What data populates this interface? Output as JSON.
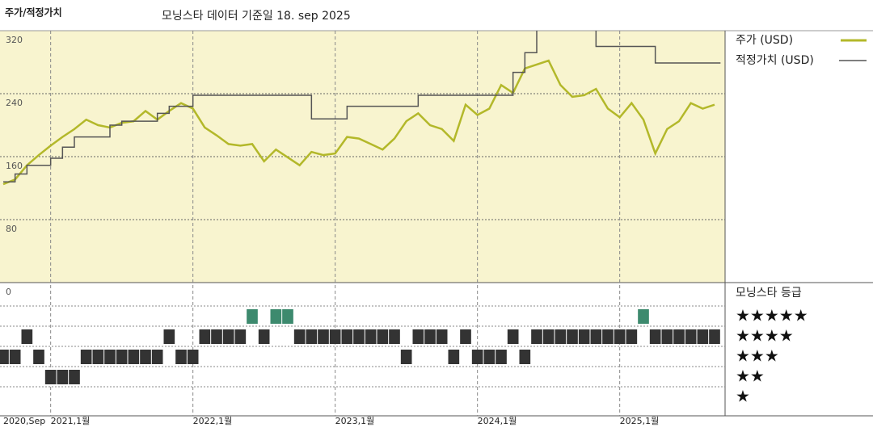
{
  "header": {
    "title": "주가/적정가치",
    "subtitle": "모닝스타 데이터 기준일 18. sep 2025"
  },
  "chart_data": [
    {
      "type": "line",
      "x": [
        "2020-09",
        "2020-10",
        "2020-11",
        "2020-12",
        "2021-01",
        "2021-02",
        "2021-03",
        "2021-04",
        "2021-05",
        "2021-06",
        "2021-07",
        "2021-08",
        "2021-09",
        "2021-10",
        "2021-11",
        "2021-12",
        "2022-01",
        "2022-02",
        "2022-03",
        "2022-04",
        "2022-05",
        "2022-06",
        "2022-07",
        "2022-08",
        "2022-09",
        "2022-10",
        "2022-11",
        "2022-12",
        "2023-01",
        "2023-02",
        "2023-03",
        "2023-04",
        "2023-05",
        "2023-06",
        "2023-07",
        "2023-08",
        "2023-09",
        "2023-10",
        "2023-11",
        "2023-12",
        "2024-01",
        "2024-02",
        "2024-03",
        "2024-04",
        "2024-05",
        "2024-06",
        "2024-07",
        "2024-08",
        "2024-09",
        "2024-10",
        "2024-11",
        "2024-12",
        "2025-01",
        "2025-02",
        "2025-03",
        "2025-04",
        "2025-05",
        "2025-06",
        "2025-07",
        "2025-08",
        "2025-09"
      ],
      "series": [
        {
          "name": "주가 (USD)",
          "color": "#b3b82a",
          "values": [
            125,
            131,
            149,
            162,
            174,
            185,
            195,
            207,
            200,
            197,
            203,
            205,
            218,
            207,
            218,
            228,
            221,
            197,
            187,
            176,
            174,
            176,
            154,
            169,
            159,
            149,
            166,
            162,
            164,
            185,
            183,
            176,
            169,
            183,
            205,
            215,
            200,
            195,
            180,
            226,
            213,
            221,
            251,
            241,
            272,
            277,
            282,
            251,
            236,
            238,
            246,
            221,
            210,
            228,
            207,
            164,
            195,
            205,
            228,
            221,
            226
          ]
        },
        {
          "name": "적정가치 (USD)",
          "color": "#555555",
          "step": true,
          "values": [
            128,
            138,
            149,
            149,
            158,
            172,
            185,
            185,
            185,
            200,
            205,
            205,
            205,
            215,
            224,
            224,
            238,
            238,
            238,
            238,
            238,
            238,
            238,
            238,
            238,
            238,
            208,
            208,
            208,
            224,
            224,
            224,
            224,
            224,
            224,
            238,
            238,
            238,
            238,
            238,
            238,
            238,
            238,
            267,
            292,
            330,
            330,
            330,
            330,
            330,
            300,
            300,
            300,
            300,
            300,
            279,
            279,
            279,
            279,
            279,
            279
          ]
        }
      ],
      "ylim": [
        0,
        320
      ],
      "yticks": [
        0,
        80,
        160,
        240,
        320
      ],
      "xticks": [
        {
          "value": "2020-09",
          "label": "2020,Sep"
        },
        {
          "value": "2021-01",
          "label": "2021,1월"
        },
        {
          "value": "2022-01",
          "label": "2022,1월"
        },
        {
          "value": "2023-01",
          "label": "2023,1월"
        },
        {
          "value": "2024-01",
          "label": "2024,1월"
        },
        {
          "value": "2025-01",
          "label": "2025,1월"
        }
      ],
      "background": "#f8f4cf",
      "grid": true
    },
    {
      "type": "rating",
      "title": "모닝스타 등급",
      "levels": [
        {
          "value": 5,
          "label": "★★★★★"
        },
        {
          "value": 4,
          "label": "★★★★"
        },
        {
          "value": 3,
          "label": "★★★"
        },
        {
          "value": 2,
          "label": "★★"
        },
        {
          "value": 1,
          "label": "★"
        }
      ],
      "values": [
        3,
        3,
        4,
        3,
        2,
        2,
        2,
        3,
        3,
        3,
        3,
        3,
        3,
        3,
        4,
        3,
        3,
        4,
        4,
        4,
        4,
        5,
        4,
        5,
        5,
        4,
        4,
        4,
        4,
        4,
        4,
        4,
        4,
        4,
        3,
        4,
        4,
        4,
        3,
        4,
        3,
        3,
        3,
        4,
        3,
        4,
        4,
        4,
        4,
        4,
        4,
        4,
        4,
        4,
        5,
        4,
        4,
        4,
        4,
        4,
        4
      ],
      "color": "#333333",
      "top_color": "#3d8a6e"
    }
  ]
}
